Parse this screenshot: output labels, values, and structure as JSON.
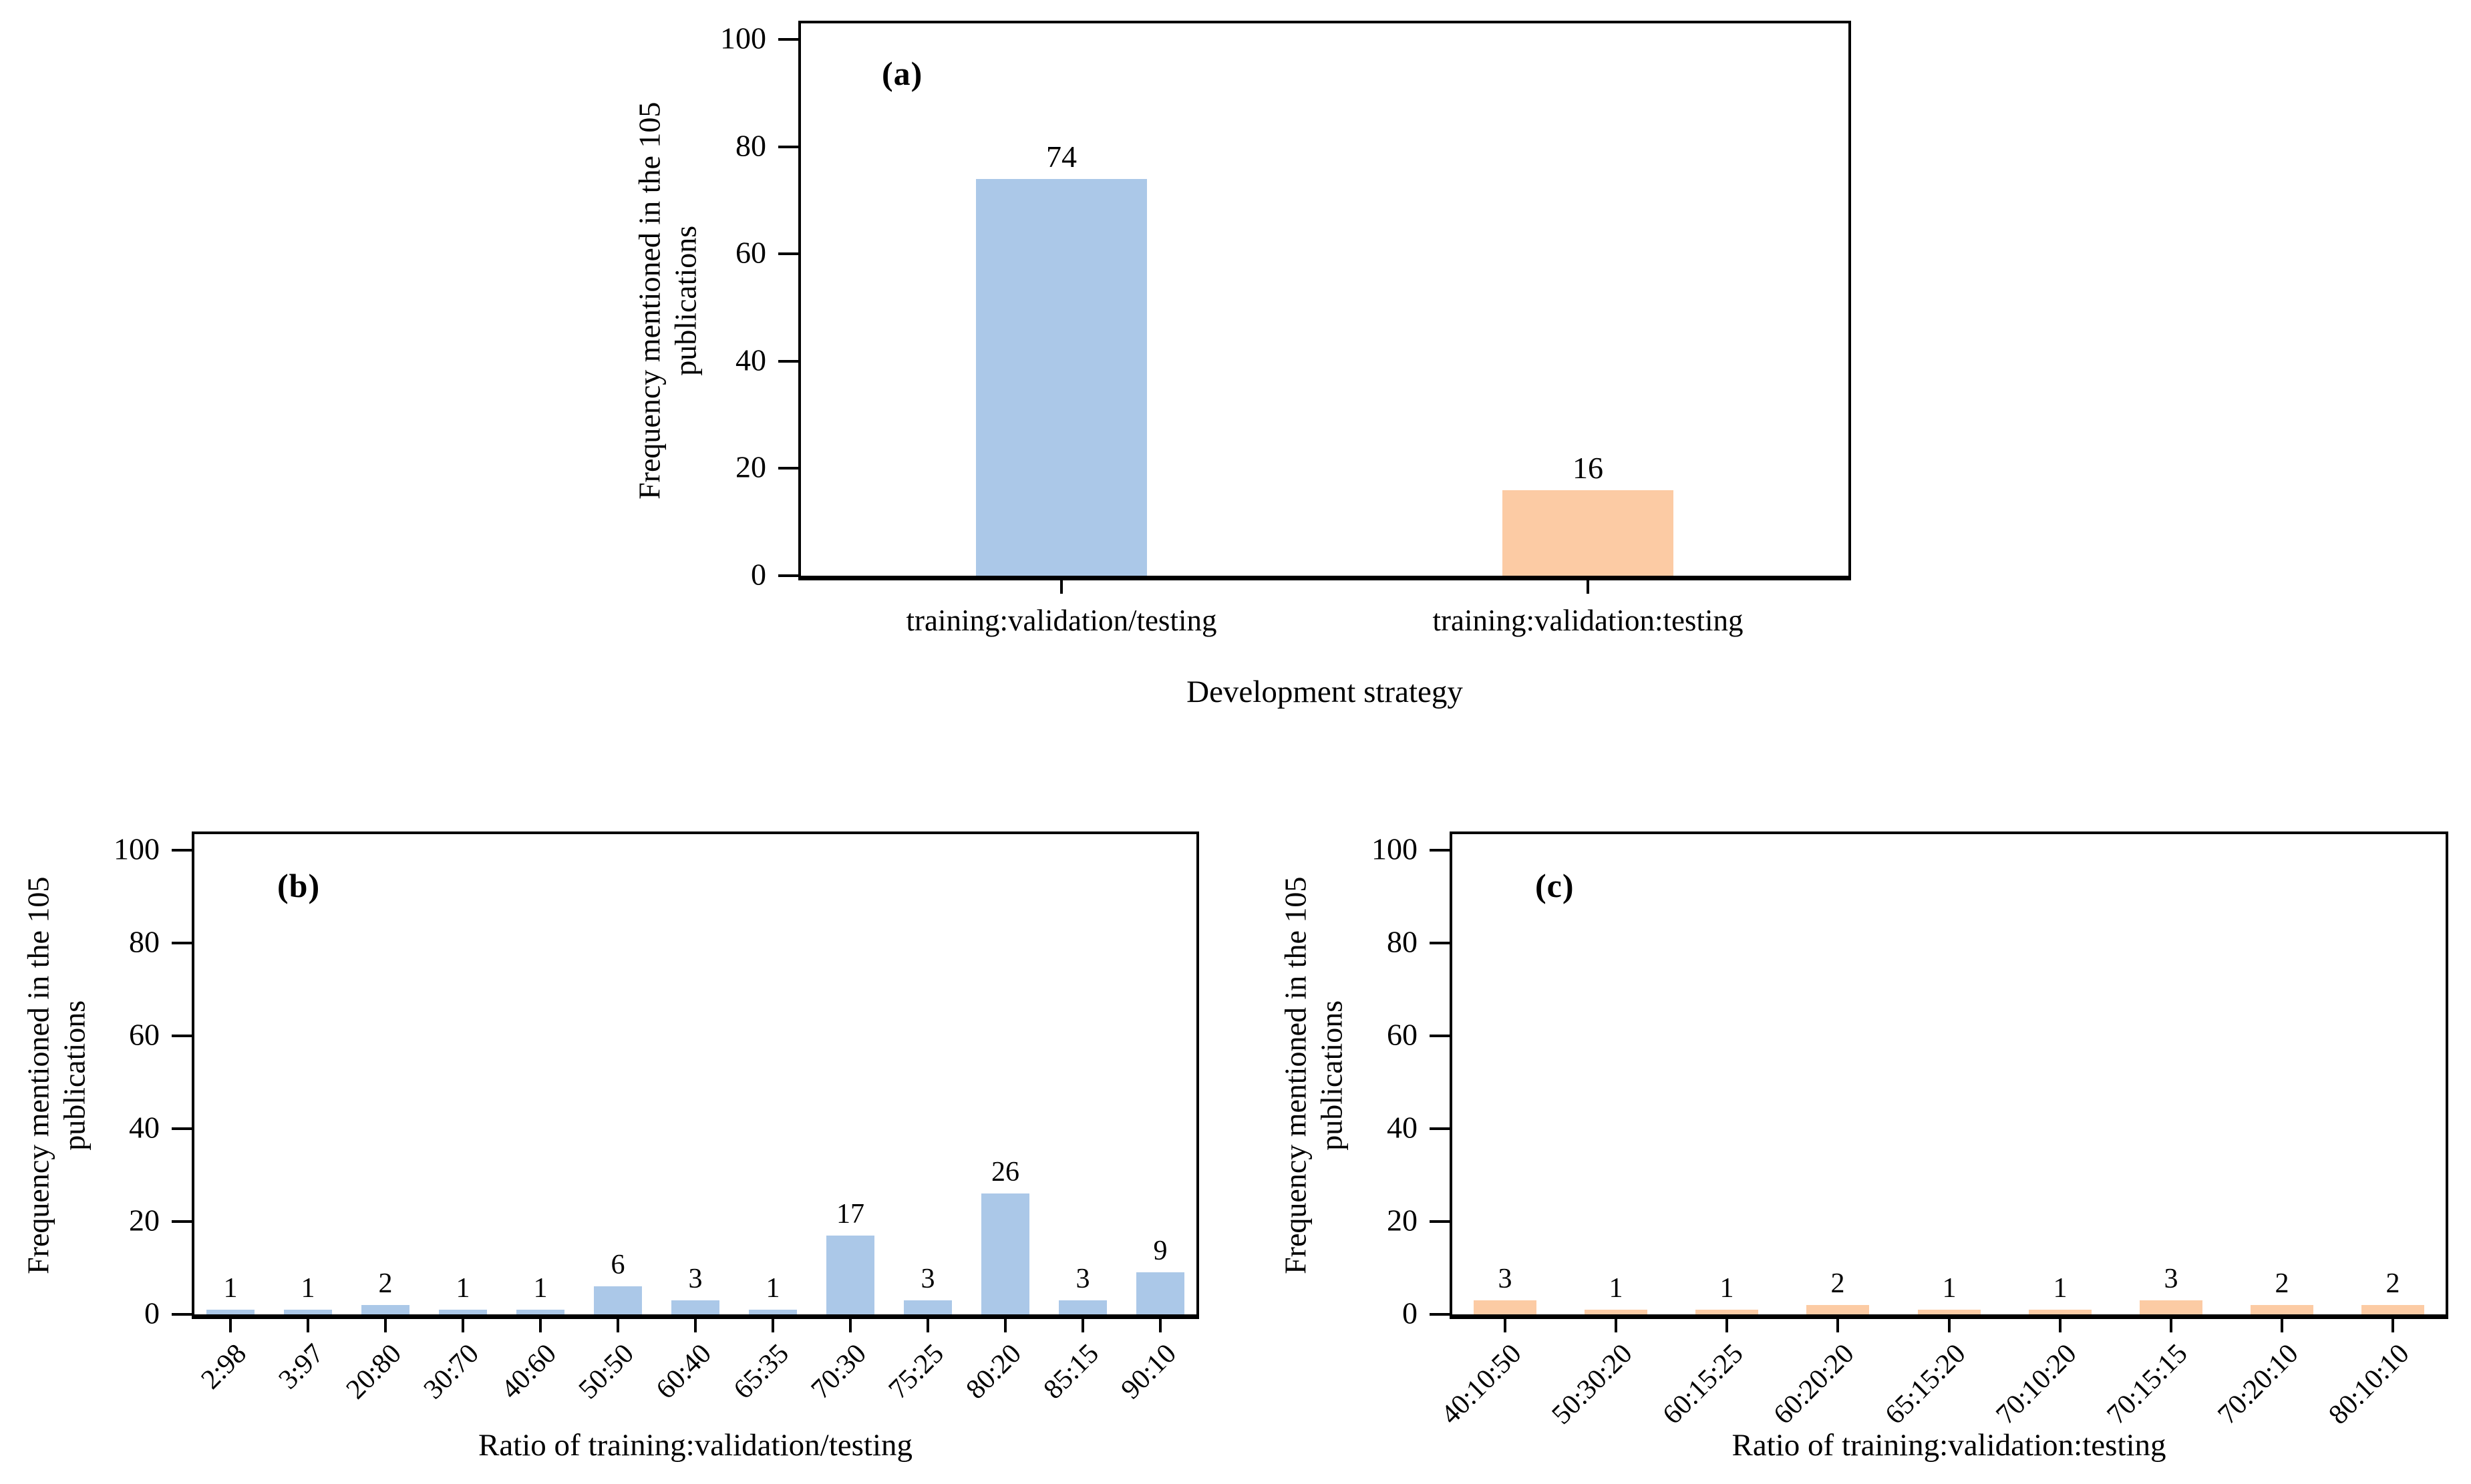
{
  "figure": {
    "background": "#ffffff",
    "text_color": "#000000",
    "axis_color": "#000000"
  },
  "colors": {
    "blue_bar": "#abc8e8",
    "orange_bar": "#fccba4"
  },
  "chart_data": [
    {
      "id": "a",
      "type": "bar",
      "panel_label": "(a)",
      "ylabel_lines": [
        "Frequency mentioned in the 105",
        "publications"
      ],
      "xlabel": "Development strategy",
      "categories": [
        "training:validation/testing",
        "training:validation:testing"
      ],
      "values": [
        74,
        16
      ],
      "bar_colors": [
        "#abc8e8",
        "#fccba4"
      ],
      "yticks": [
        0,
        20,
        40,
        60,
        80,
        100
      ],
      "ylim": [
        0,
        104
      ],
      "grid": false,
      "legend": null,
      "rotated_x_labels": false
    },
    {
      "id": "b",
      "type": "bar",
      "panel_label": "(b)",
      "ylabel_lines": [
        "Frequency mentioned in the 105",
        "publications"
      ],
      "xlabel": "Ratio of training:validation/testing",
      "categories": [
        "2:98",
        "3:97",
        "20:80",
        "30:70",
        "40:60",
        "50:50",
        "60:40",
        "65:35",
        "70:30",
        "75:25",
        "80:20",
        "85:15",
        "90:10"
      ],
      "values": [
        1,
        1,
        2,
        1,
        1,
        6,
        3,
        1,
        17,
        3,
        26,
        3,
        9
      ],
      "bar_colors": [
        "#abc8e8",
        "#abc8e8",
        "#abc8e8",
        "#abc8e8",
        "#abc8e8",
        "#abc8e8",
        "#abc8e8",
        "#abc8e8",
        "#abc8e8",
        "#abc8e8",
        "#abc8e8",
        "#abc8e8",
        "#abc8e8"
      ],
      "yticks": [
        0,
        20,
        40,
        60,
        80,
        100
      ],
      "ylim": [
        0,
        104
      ],
      "grid": false,
      "legend": null,
      "rotated_x_labels": true
    },
    {
      "id": "c",
      "type": "bar",
      "panel_label": "(c)",
      "ylabel_lines": [
        "Frequency mentioned in the 105",
        "publications"
      ],
      "xlabel": "Ratio of training:validation:testing",
      "categories": [
        "40:10:50",
        "50:30:20",
        "60:15:25",
        "60:20:20",
        "65:15:20",
        "70:10:20",
        "70:15:15",
        "70:20:10",
        "80:10:10"
      ],
      "values": [
        3,
        1,
        1,
        2,
        1,
        1,
        3,
        2,
        2
      ],
      "bar_colors": [
        "#fccba4",
        "#fccba4",
        "#fccba4",
        "#fccba4",
        "#fccba4",
        "#fccba4",
        "#fccba4",
        "#fccba4",
        "#fccba4"
      ],
      "yticks": [
        0,
        20,
        40,
        60,
        80,
        100
      ],
      "ylim": [
        0,
        104
      ],
      "grid": false,
      "legend": null,
      "rotated_x_labels": true
    }
  ]
}
